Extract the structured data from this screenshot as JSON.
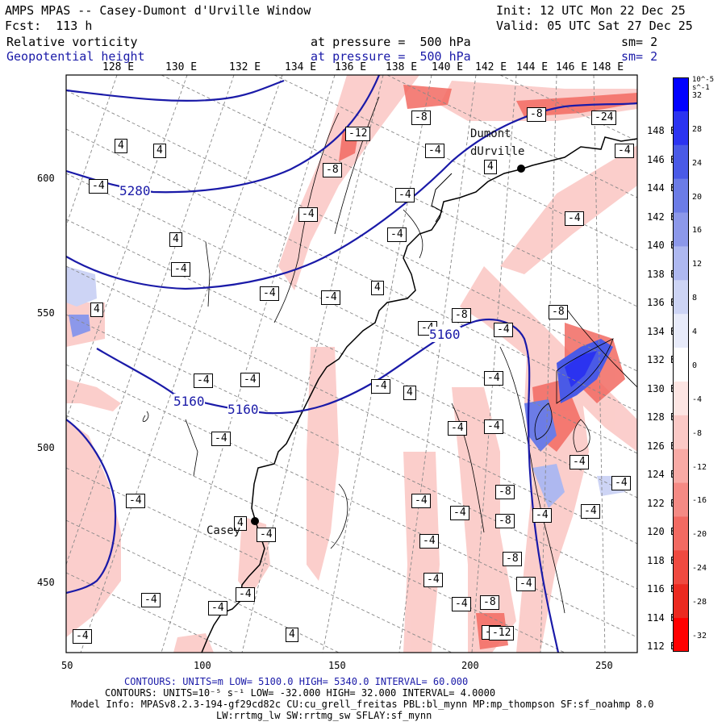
{
  "header": {
    "model_title": "AMPS MPAS -- Casey-Dumont d'Urville Window",
    "init": "Init: 12 UTC Mon 22 Dec 25",
    "fcst": "Fcst:  113 h",
    "valid": "Valid: 05 UTC Sat 27 Dec 25",
    "field1": {
      "name": "Relative vorticity",
      "pressure": "at pressure =  500 hPa",
      "sm": "sm= 2"
    },
    "field2": {
      "name": "Geopotential height",
      "pressure": "at pressure =  500 hPa",
      "sm": "sm= 2"
    }
  },
  "longitude_labels_top": [
    "128 E",
    "130 E",
    "132 E",
    "134 E",
    "136 E",
    "138 E",
    "140 E",
    "142 E",
    "144 E",
    "146 E",
    "148 E"
  ],
  "longitude_labels_right": [
    "148 E",
    "146 E",
    "144 E",
    "142 E",
    "140 E",
    "138 E",
    "136 E",
    "134 E",
    "132 E",
    "130 E",
    "128 E",
    "126 E",
    "124 E",
    "122 E",
    "120 E",
    "118 E",
    "116 E",
    "114 E",
    "112 E"
  ],
  "x_ticks": [
    "50",
    "100",
    "150",
    "200",
    "250"
  ],
  "y_ticks": [
    "600",
    "550",
    "500",
    "450"
  ],
  "stations": [
    {
      "name": "Dumont dUrville"
    },
    {
      "name": "Casey"
    }
  ],
  "height_contour_labels": [
    "5280",
    "5160",
    "5160",
    "5160"
  ],
  "vorticity_labels": [
    "-4",
    "-4",
    "4",
    "4",
    "-12",
    "-8",
    "-8",
    "-4",
    "4",
    "-8",
    "-24",
    "-4",
    "-4",
    "-4",
    "-4",
    "4",
    "4",
    "-4",
    "-4",
    "-4",
    "4",
    "-4",
    "-4",
    "-8",
    "-8",
    "-4",
    "-4",
    "4",
    "-4",
    "-4",
    "-4",
    "-4",
    "-4",
    "-4",
    "-4",
    "-4",
    "-4",
    "-8",
    "-8",
    "-8",
    "-4",
    "-8",
    "-4",
    "-4",
    "-4",
    "-4",
    "-8",
    "-12",
    "4",
    "-4",
    "-4",
    "-4",
    "-4",
    "-4",
    "-4",
    "-4",
    "4"
  ],
  "colorbar": {
    "unit": "10^-5 s^-1",
    "labels": [
      "32",
      "28",
      "24",
      "20",
      "16",
      "12",
      "8",
      "4",
      "0",
      "-4",
      "-8",
      "-12",
      "-16",
      "-20",
      "-24",
      "-28",
      "-32"
    ],
    "colors": [
      "#0000ff",
      "#2b33f0",
      "#4a5ae6",
      "#6c7ce6",
      "#8c98ea",
      "#aeb8f0",
      "#cdd4f5",
      "#e8ebfa",
      "#ffffff",
      "#fde5e3",
      "#fbc9c6",
      "#f8aaa5",
      "#f58a84",
      "#f26a62",
      "#ef4a40",
      "#eb2a20",
      "#ff0000"
    ]
  },
  "footer": {
    "line1": "CONTOURS:  UNITS=m  LOW=  5100.0       HIGH=  5340.0       INTERVAL=    60.000",
    "line2": "CONTOURS:  UNITS=10⁻⁵ s⁻¹  LOW= -32.000       HIGH=  32.000       INTERVAL=   4.0000",
    "line3": "Model Info: MPASv8.2.3-194-gf29cd82c CU:cu_grell_freitas PBL:bl_mynn MP:mp_thompson SF:sf_noahmp 8.0",
    "line4": "LW:rrtmg_lw SW:rrtmg_sw SFLAY:sf_mynn"
  },
  "colors": {
    "height_contour": "#1a1aa8",
    "coast": "#000000",
    "positive_vorticity": "#2b33f0",
    "negative_vorticity": "#ef4a40"
  }
}
